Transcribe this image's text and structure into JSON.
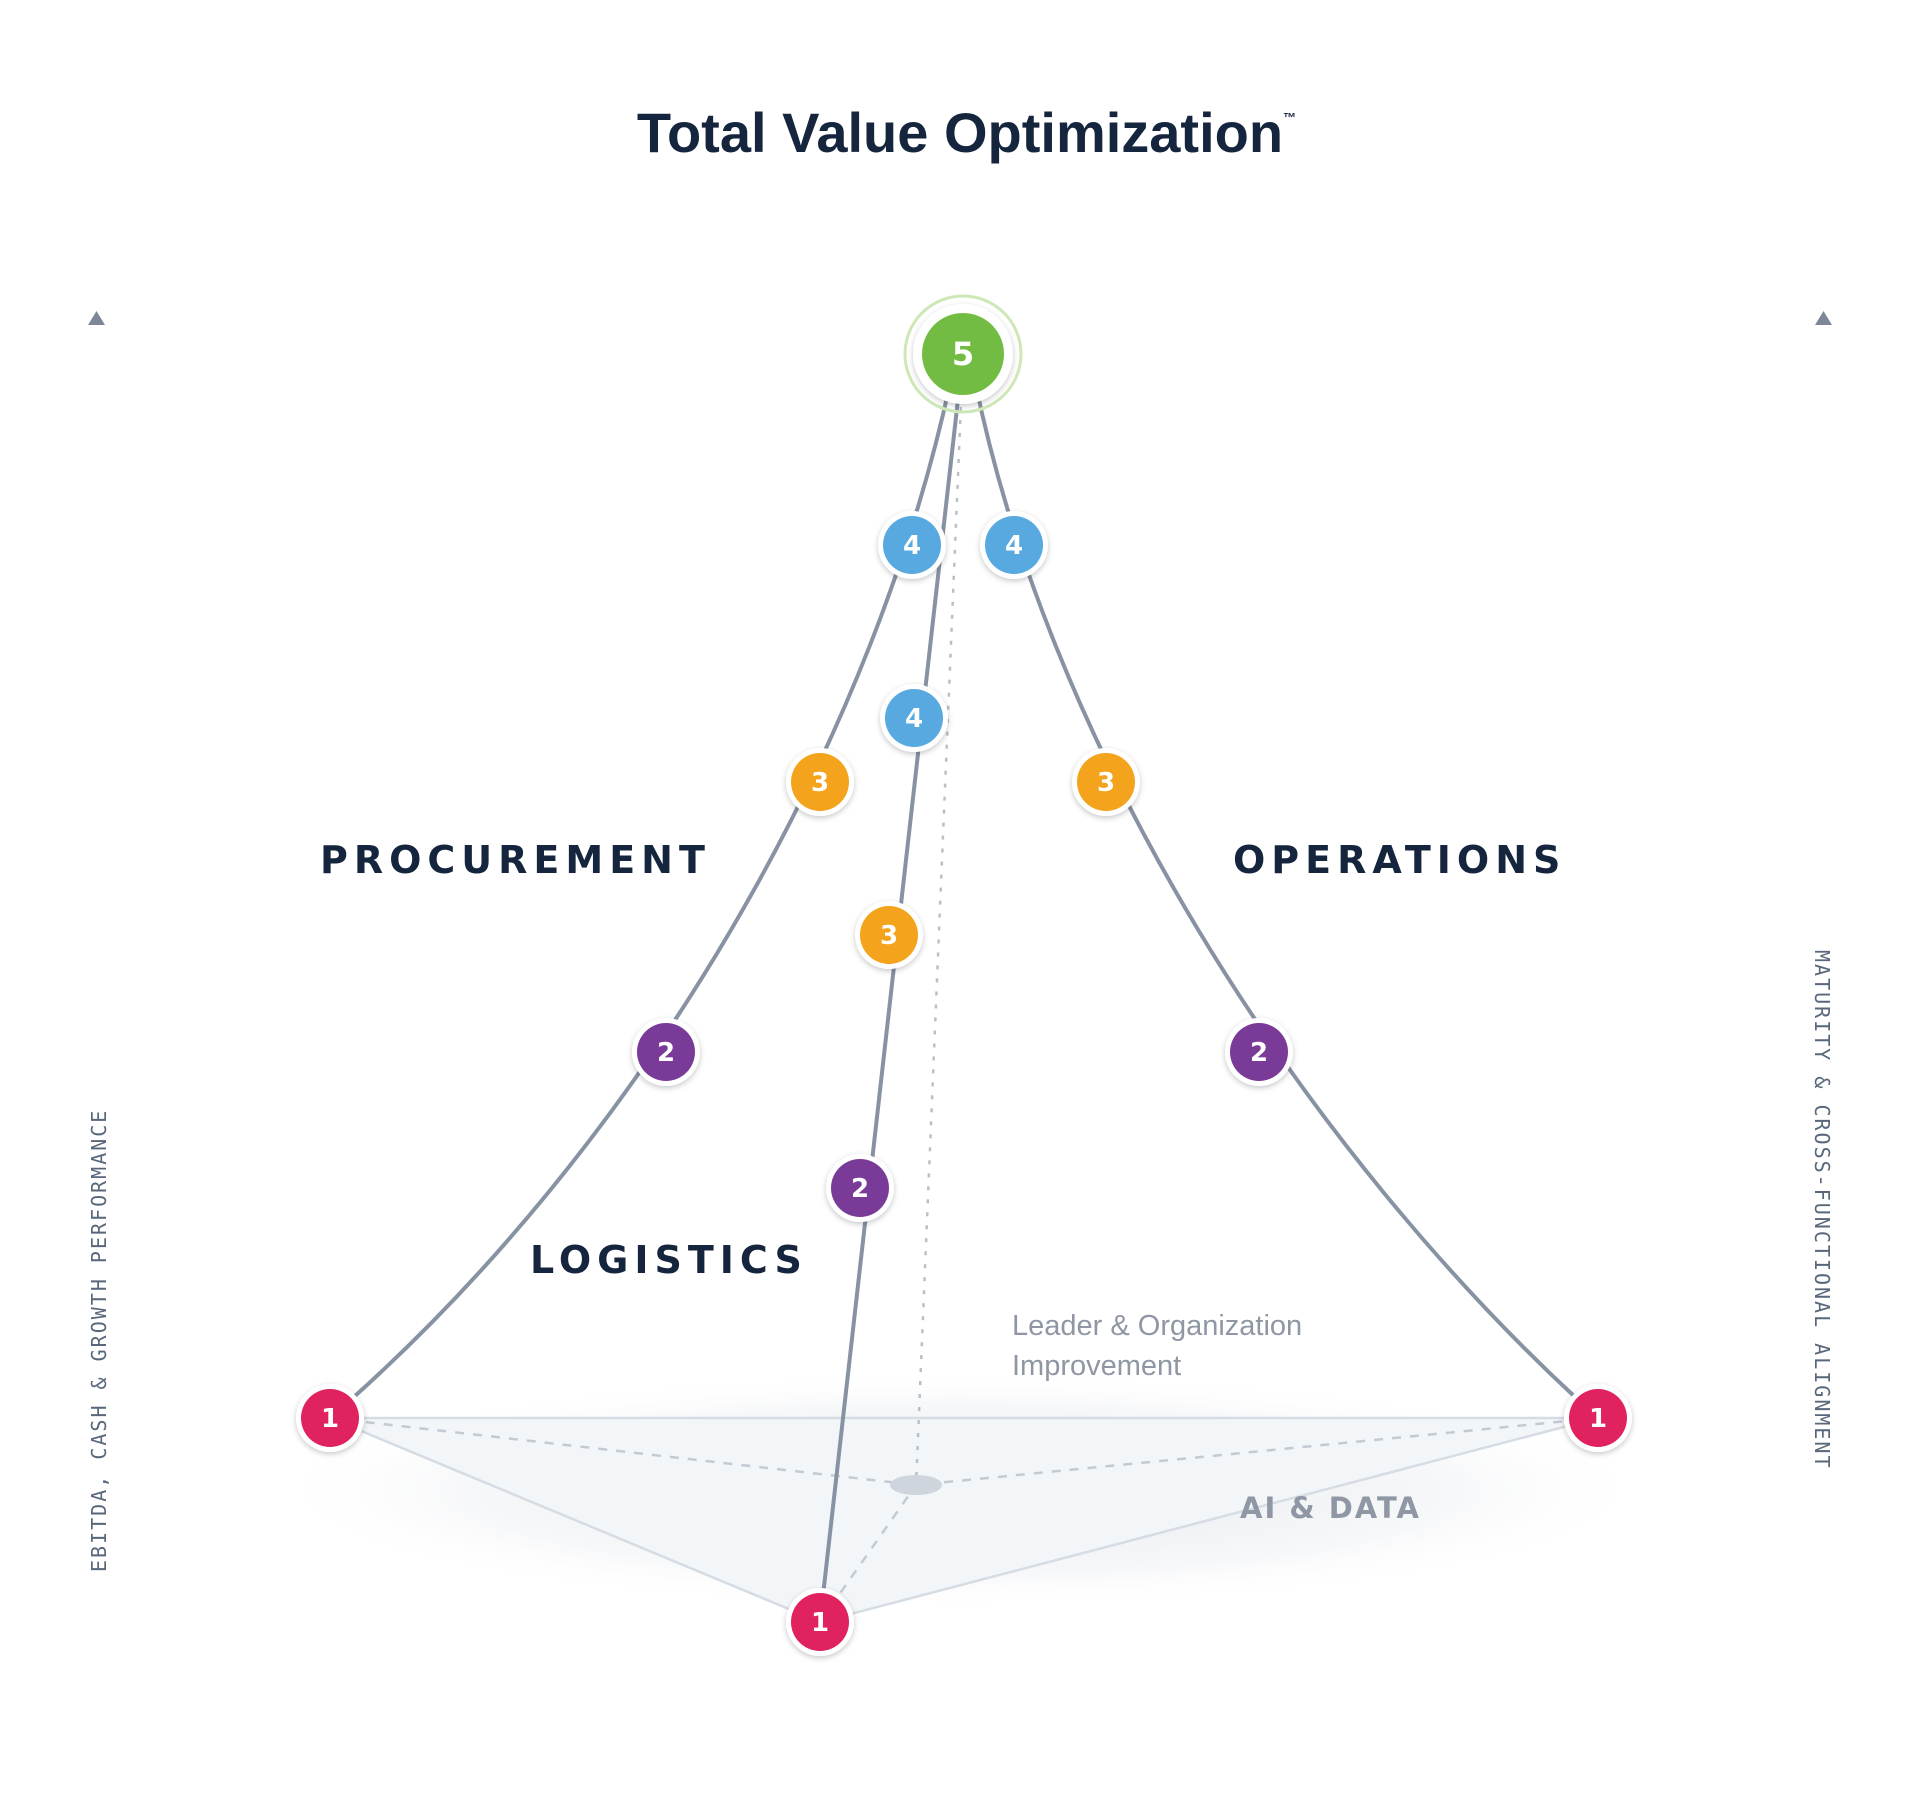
{
  "title": "Total Value Optimization",
  "trademark": "™",
  "left_axis_label": "EBITDA, CASH & GROWTH PERFORMANCE",
  "right_axis_label": "MATURITY & CROSS-FUNCTIONAL ALIGNMENT",
  "pillars": {
    "procurement": "PROCUREMENT",
    "operations": "OPERATIONS",
    "logistics": "LOGISTICS"
  },
  "foundations": {
    "leader_line1": "Leader & Organization",
    "leader_line2": "Improvement",
    "ai_data": "AI & DATA"
  },
  "levels": {
    "l1": "1",
    "l2": "2",
    "l3": "3",
    "l4": "4",
    "l5": "5"
  },
  "colors": {
    "level1": "#e0245e",
    "level2": "#7a3b98",
    "level3": "#f3a31c",
    "level4": "#58a9e0",
    "level5": "#72bc44",
    "text_dark": "#15253d",
    "line": "#8793a3"
  }
}
